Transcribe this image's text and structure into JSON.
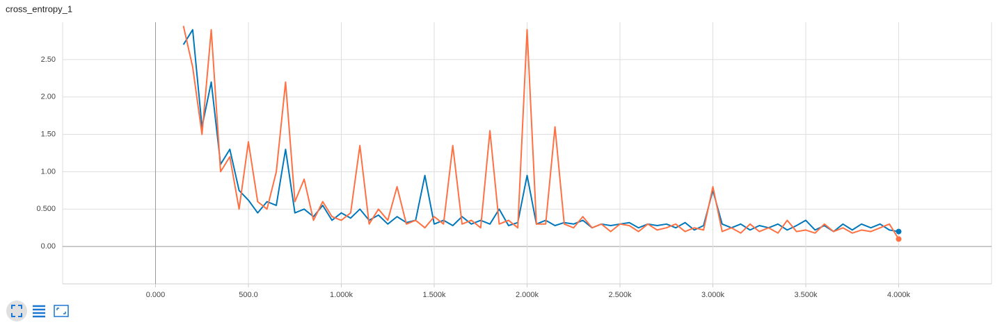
{
  "chart_data": {
    "type": "line",
    "title": "cross_entropy_1",
    "x": [
      150,
      200,
      250,
      300,
      350,
      400,
      450,
      500,
      550,
      600,
      650,
      700,
      750,
      800,
      850,
      900,
      950,
      1000,
      1050,
      1100,
      1150,
      1200,
      1250,
      1300,
      1350,
      1400,
      1450,
      1500,
      1550,
      1600,
      1650,
      1700,
      1750,
      1800,
      1850,
      1900,
      1950,
      2000,
      2050,
      2100,
      2150,
      2200,
      2250,
      2300,
      2350,
      2400,
      2450,
      2500,
      2550,
      2600,
      2650,
      2700,
      2750,
      2800,
      2850,
      2900,
      2950,
      3000,
      3050,
      3100,
      3150,
      3200,
      3250,
      3300,
      3350,
      3400,
      3450,
      3500,
      3550,
      3600,
      3650,
      3700,
      3750,
      3800,
      3850,
      3900,
      3950,
      4000
    ],
    "series": [
      {
        "color": "#0077bb",
        "values": [
          2.7,
          2.9,
          1.6,
          2.2,
          1.1,
          1.3,
          0.75,
          0.62,
          0.45,
          0.6,
          0.55,
          1.3,
          0.45,
          0.5,
          0.4,
          0.55,
          0.35,
          0.45,
          0.38,
          0.5,
          0.35,
          0.42,
          0.3,
          0.4,
          0.32,
          0.35,
          0.95,
          0.3,
          0.35,
          0.28,
          0.4,
          0.3,
          0.35,
          0.3,
          0.5,
          0.28,
          0.32,
          0.95,
          0.3,
          0.35,
          0.28,
          0.32,
          0.3,
          0.35,
          0.25,
          0.3,
          0.28,
          0.3,
          0.32,
          0.25,
          0.3,
          0.28,
          0.3,
          0.25,
          0.32,
          0.22,
          0.28,
          0.75,
          0.3,
          0.25,
          0.3,
          0.22,
          0.28,
          0.25,
          0.3,
          0.22,
          0.28,
          0.35,
          0.22,
          0.28,
          0.2,
          0.3,
          0.22,
          0.3,
          0.25,
          0.3,
          0.22,
          0.2
        ]
      },
      {
        "color": "#ff7043",
        "values": [
          2.95,
          2.4,
          1.5,
          2.9,
          1.0,
          1.2,
          0.5,
          1.4,
          0.6,
          0.5,
          1.0,
          2.2,
          0.6,
          0.9,
          0.35,
          0.6,
          0.4,
          0.35,
          0.45,
          1.35,
          0.3,
          0.5,
          0.35,
          0.8,
          0.3,
          0.35,
          0.25,
          0.4,
          0.3,
          1.35,
          0.3,
          0.35,
          0.25,
          1.55,
          0.3,
          0.35,
          0.25,
          2.9,
          0.3,
          0.3,
          1.6,
          0.3,
          0.25,
          0.4,
          0.25,
          0.3,
          0.2,
          0.3,
          0.28,
          0.2,
          0.3,
          0.22,
          0.25,
          0.3,
          0.2,
          0.25,
          0.22,
          0.8,
          0.2,
          0.25,
          0.18,
          0.3,
          0.2,
          0.25,
          0.18,
          0.35,
          0.2,
          0.22,
          0.18,
          0.3,
          0.2,
          0.25,
          0.18,
          0.22,
          0.2,
          0.25,
          0.3,
          0.1
        ]
      }
    ],
    "xlim": [
      -500,
      4500
    ],
    "ylim": [
      -0.5,
      3.0
    ],
    "xticks": [
      {
        "value": 0,
        "label": "0.000"
      },
      {
        "value": 500,
        "label": "500.0"
      },
      {
        "value": 1000,
        "label": "1.000k"
      },
      {
        "value": 1500,
        "label": "1.500k"
      },
      {
        "value": 2000,
        "label": "2.000k"
      },
      {
        "value": 2500,
        "label": "2.500k"
      },
      {
        "value": 3000,
        "label": "3.000k"
      },
      {
        "value": 3500,
        "label": "3.500k"
      },
      {
        "value": 4000,
        "label": "4.000k"
      }
    ],
    "yticks": [
      {
        "value": 0,
        "label": "0.00"
      },
      {
        "value": 0.5,
        "label": "0.500"
      },
      {
        "value": 1,
        "label": "1.00"
      },
      {
        "value": 1.5,
        "label": "1.50"
      },
      {
        "value": 2,
        "label": "2.00"
      },
      {
        "value": 2.5,
        "label": "2.50"
      }
    ],
    "grid": true
  }
}
